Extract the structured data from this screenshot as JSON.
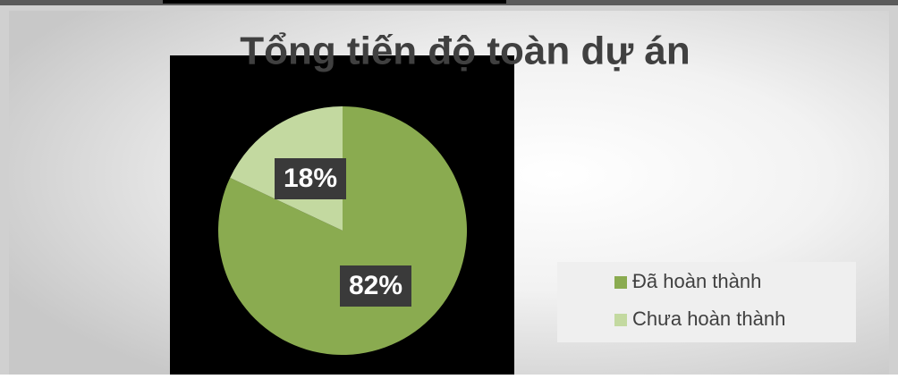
{
  "chart_data": {
    "type": "pie",
    "title": "Tổng tiến độ toàn dự án",
    "categories": [
      "Đã hoàn thành",
      "Chưa hoàn thành"
    ],
    "values": [
      82,
      18
    ],
    "value_labels": [
      "82%",
      "18%"
    ],
    "colors": [
      "#8aab50",
      "#c3d9a0"
    ],
    "legend": "right"
  }
}
